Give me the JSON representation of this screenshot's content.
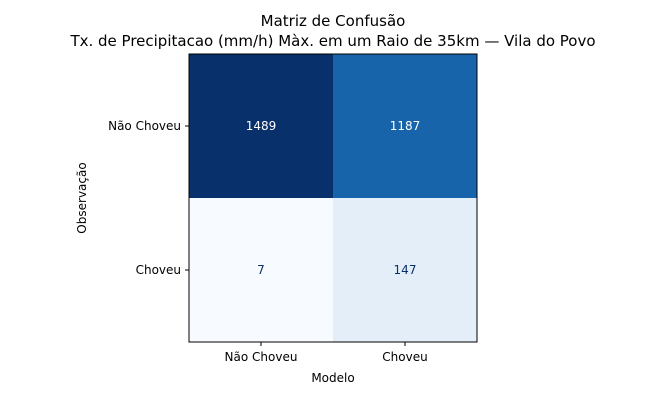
{
  "chart_data": {
    "type": "heatmap",
    "title": "Matriz de Confusão",
    "subtitle": "Tx. de Precipitacao (mm/h) Màx. em um Raio de 35km — Vila do Povo",
    "xlabel": "Modelo",
    "ylabel": "Observação",
    "x_categories": [
      "Não Choveu",
      "Choveu"
    ],
    "y_categories": [
      "Não Choveu",
      "Choveu"
    ],
    "values": [
      [
        1489,
        1187
      ],
      [
        7,
        147
      ]
    ],
    "colormap": "Blues",
    "colors": {
      "cell_0_0": "#08306b",
      "cell_0_1": "#1764ab",
      "cell_1_0": "#f7fbff",
      "cell_1_1": "#e3eef8",
      "text_dark_bg": "#ffffff",
      "text_light_bg": "#08306b"
    },
    "grid": false,
    "colorbar": false
  }
}
